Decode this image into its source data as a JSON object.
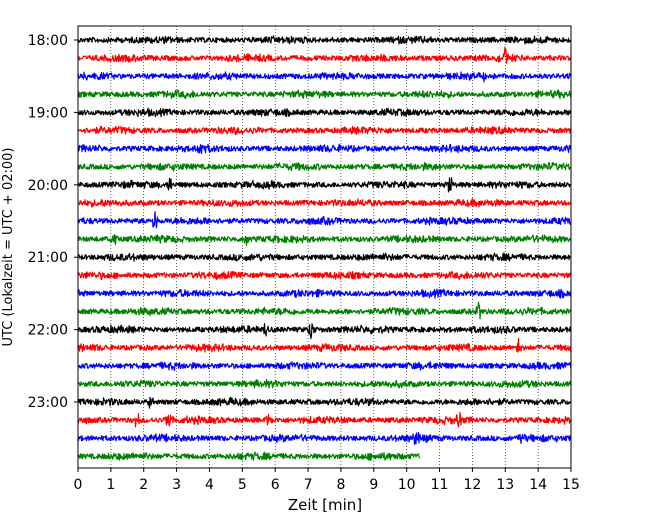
{
  "chart_data": {
    "type": "line",
    "subtype": "helicorder",
    "title": "",
    "xlabel": "Zeit  [min]",
    "ylabel": "UTC (Lokalzeit = UTC + 02:00)",
    "xlim": [
      0,
      15
    ],
    "x_ticks": [
      "0",
      "1",
      "2",
      "3",
      "4",
      "5",
      "6",
      "7",
      "8",
      "9",
      "10",
      "11",
      "12",
      "13",
      "14",
      "15"
    ],
    "y_tick_labels": [
      "18:00",
      "19:00",
      "20:00",
      "21:00",
      "22:00",
      "23:00"
    ],
    "y_tick_rows": [
      0,
      4,
      8,
      12,
      16,
      20
    ],
    "grid": "vertical dotted lines at each minute",
    "row_interval_min": 15,
    "row_colors": [
      "#000000",
      "#ff0000",
      "#0000ff",
      "#008000"
    ],
    "traces": [
      {
        "row": 0,
        "start": "18:00",
        "end_min": 15,
        "color": "#000000"
      },
      {
        "row": 1,
        "start": "18:15",
        "end_min": 15,
        "color": "#ff0000"
      },
      {
        "row": 2,
        "start": "18:30",
        "end_min": 15,
        "color": "#0000ff"
      },
      {
        "row": 3,
        "start": "18:45",
        "end_min": 15,
        "color": "#008000"
      },
      {
        "row": 4,
        "start": "19:00",
        "end_min": 15,
        "color": "#000000"
      },
      {
        "row": 5,
        "start": "19:15",
        "end_min": 15,
        "color": "#ff0000"
      },
      {
        "row": 6,
        "start": "19:30",
        "end_min": 15,
        "color": "#0000ff"
      },
      {
        "row": 7,
        "start": "19:45",
        "end_min": 15,
        "color": "#008000"
      },
      {
        "row": 8,
        "start": "20:00",
        "end_min": 15,
        "color": "#000000"
      },
      {
        "row": 9,
        "start": "20:15",
        "end_min": 15,
        "color": "#ff0000"
      },
      {
        "row": 10,
        "start": "20:30",
        "end_min": 15,
        "color": "#0000ff"
      },
      {
        "row": 11,
        "start": "20:45",
        "end_min": 15,
        "color": "#008000"
      },
      {
        "row": 12,
        "start": "21:00",
        "end_min": 15,
        "color": "#000000"
      },
      {
        "row": 13,
        "start": "21:15",
        "end_min": 15,
        "color": "#ff0000"
      },
      {
        "row": 14,
        "start": "21:30",
        "end_min": 15,
        "color": "#0000ff"
      },
      {
        "row": 15,
        "start": "21:45",
        "end_min": 15,
        "color": "#008000"
      },
      {
        "row": 16,
        "start": "22:00",
        "end_min": 15,
        "color": "#000000"
      },
      {
        "row": 17,
        "start": "22:15",
        "end_min": 15,
        "color": "#ff0000"
      },
      {
        "row": 18,
        "start": "22:30",
        "end_min": 15,
        "color": "#0000ff"
      },
      {
        "row": 19,
        "start": "22:45",
        "end_min": 15,
        "color": "#008000"
      },
      {
        "row": 20,
        "start": "23:00",
        "end_min": 15,
        "color": "#000000"
      },
      {
        "row": 21,
        "start": "23:15",
        "end_min": 15,
        "color": "#ff0000"
      },
      {
        "row": 22,
        "start": "23:30",
        "end_min": 15,
        "color": "#0000ff"
      },
      {
        "row": 23,
        "start": "23:45",
        "end_min": 10.4,
        "color": "#008000"
      }
    ],
    "spikes": [
      {
        "row": 1,
        "x_min": 13.0,
        "amplitude": 1.0
      },
      {
        "row": 2,
        "x_min": 12.3,
        "amplitude": 0.8
      },
      {
        "row": 6,
        "x_min": 3.7,
        "amplitude": 0.8
      },
      {
        "row": 8,
        "x_min": 2.8,
        "amplitude": 1.1
      },
      {
        "row": 8,
        "x_min": 11.3,
        "amplitude": 1.2
      },
      {
        "row": 10,
        "x_min": 2.35,
        "amplitude": 1.6
      },
      {
        "row": 11,
        "x_min": 1.1,
        "amplitude": 0.9
      },
      {
        "row": 11,
        "x_min": 5.1,
        "amplitude": 0.7
      },
      {
        "row": 15,
        "x_min": 12.2,
        "amplitude": 1.1
      },
      {
        "row": 16,
        "x_min": 5.7,
        "amplitude": 0.8
      },
      {
        "row": 16,
        "x_min": 7.1,
        "amplitude": 1.2
      },
      {
        "row": 17,
        "x_min": 13.4,
        "amplitude": 0.9
      },
      {
        "row": 20,
        "x_min": 2.2,
        "amplitude": 0.6
      },
      {
        "row": 21,
        "x_min": 1.8,
        "amplitude": 1.1
      },
      {
        "row": 21,
        "x_min": 2.75,
        "amplitude": 1.0
      },
      {
        "row": 21,
        "x_min": 5.8,
        "amplitude": 0.9
      },
      {
        "row": 21,
        "x_min": 11.6,
        "amplitude": 1.0
      },
      {
        "row": 22,
        "x_min": 10.3,
        "amplitude": 0.9
      },
      {
        "row": 22,
        "x_min": 13.5,
        "amplitude": 0.8
      }
    ]
  }
}
